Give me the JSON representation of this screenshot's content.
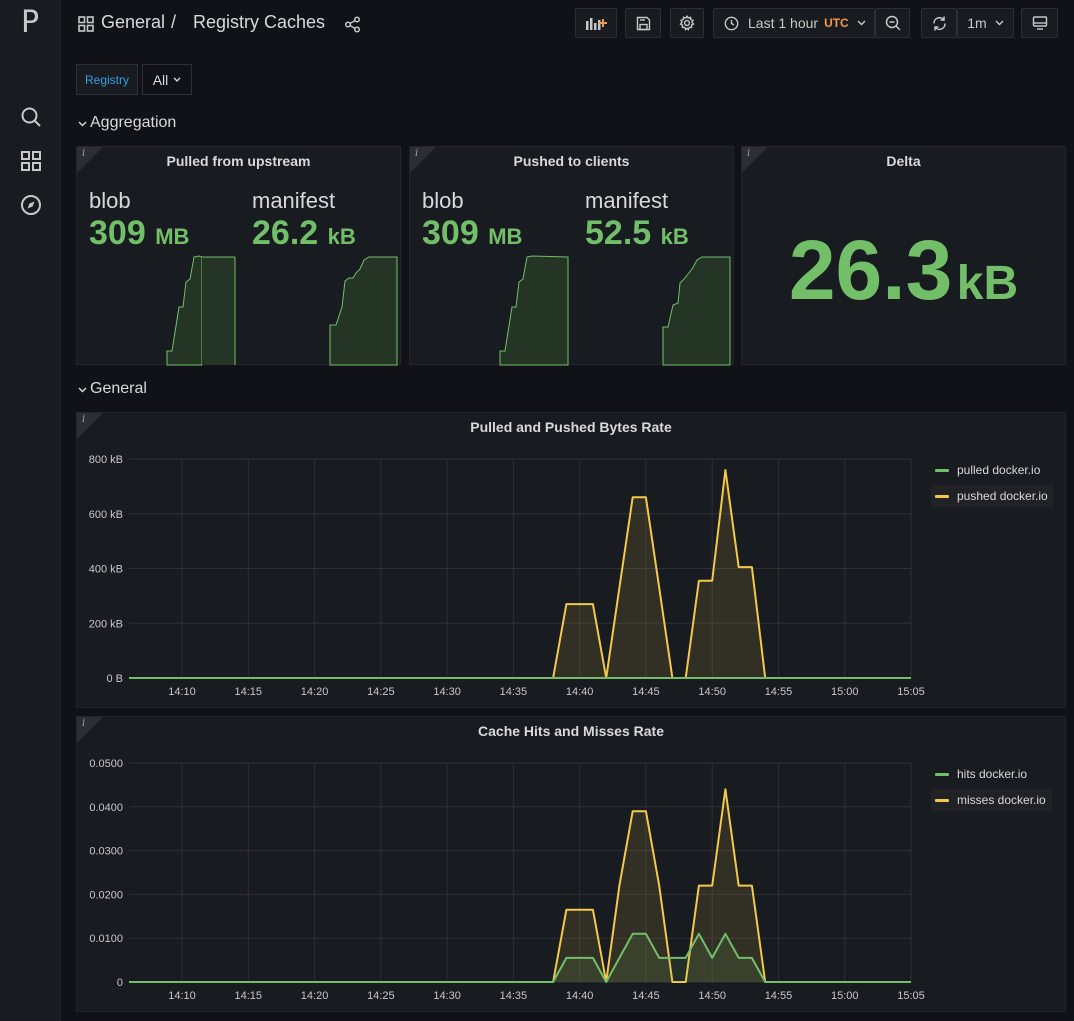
{
  "app": {
    "logo": "P"
  },
  "breadcrumb": {
    "folder": "General",
    "separator": "/",
    "dashboard": "Registry Caches"
  },
  "toolbar": {
    "time_range": "Last 1 hour",
    "timezone": "UTC",
    "refresh_interval": "1m"
  },
  "variables": {
    "label": "Registry",
    "value": "All"
  },
  "rows": {
    "aggregation": "Aggregation",
    "general": "General"
  },
  "panels": {
    "pulled_upstream": {
      "title": "Pulled from upstream",
      "stats": [
        {
          "name": "blob",
          "value": "309",
          "unit": "MB"
        },
        {
          "name": "manifest",
          "value": "26.2",
          "unit": "kB"
        }
      ]
    },
    "pushed_clients": {
      "title": "Pushed to clients",
      "stats": [
        {
          "name": "blob",
          "value": "309",
          "unit": "MB"
        },
        {
          "name": "manifest",
          "value": "52.5",
          "unit": "kB"
        }
      ]
    },
    "delta": {
      "title": "Delta",
      "value": "26.3",
      "unit": "kB"
    }
  },
  "colors": {
    "green": "#73bf69",
    "yellow": "#f2c94c",
    "background": "#111217",
    "panel": "#181b1f"
  },
  "icons": [
    "grid-icon",
    "share-icon",
    "add-panel-icon",
    "save-icon",
    "gear-icon",
    "clock-icon",
    "chevron-down-icon",
    "zoom-out-icon",
    "refresh-icon",
    "tv-icon",
    "search-icon",
    "dashboards-icon",
    "explore-icon"
  ],
  "chart_data": [
    {
      "type": "line",
      "title": "Pulled and Pushed Bytes Rate",
      "x_ticks": [
        "14:10",
        "14:15",
        "14:20",
        "14:25",
        "14:30",
        "14:35",
        "14:40",
        "14:45",
        "14:50",
        "14:55",
        "15:00",
        "15:05"
      ],
      "y_ticks": [
        "0 B",
        "200 kB",
        "400 kB",
        "600 kB",
        "800 kB"
      ],
      "ylim": [
        0,
        800
      ],
      "y_unit": "kB",
      "x": [
        "14:06",
        "14:38",
        "14:39",
        "14:41",
        "14:42",
        "14:43",
        "14:44",
        "14:45",
        "14:46",
        "14:47",
        "14:48",
        "14:49",
        "14:50",
        "14:51",
        "14:52",
        "14:53",
        "14:54",
        "14:55",
        "15:05"
      ],
      "series": [
        {
          "name": "pulled docker.io",
          "color": "#73bf69",
          "values": [
            0,
            0,
            0,
            0,
            0,
            0,
            0,
            0,
            0,
            0,
            0,
            0,
            0,
            0,
            0,
            0,
            0,
            0,
            0
          ]
        },
        {
          "name": "pushed docker.io",
          "color": "#f2c94c",
          "values": [
            0,
            0,
            270,
            270,
            0,
            330,
            660,
            660,
            330,
            0,
            0,
            355,
            355,
            760,
            405,
            405,
            0,
            0,
            0
          ]
        }
      ],
      "legend": "right"
    },
    {
      "type": "line",
      "title": "Cache Hits and Misses Rate",
      "x_ticks": [
        "14:10",
        "14:15",
        "14:20",
        "14:25",
        "14:30",
        "14:35",
        "14:40",
        "14:45",
        "14:50",
        "14:55",
        "15:00",
        "15:05"
      ],
      "y_ticks": [
        "0",
        "0.0100",
        "0.0200",
        "0.0300",
        "0.0400",
        "0.0500"
      ],
      "ylim": [
        0,
        0.05
      ],
      "x": [
        "14:06",
        "14:38",
        "14:39",
        "14:41",
        "14:42",
        "14:43",
        "14:44",
        "14:45",
        "14:46",
        "14:47",
        "14:48",
        "14:49",
        "14:50",
        "14:51",
        "14:52",
        "14:53",
        "14:54",
        "14:55",
        "15:05"
      ],
      "series": [
        {
          "name": "hits docker.io",
          "color": "#73bf69",
          "values": [
            0,
            0,
            0.0055,
            0.0055,
            0,
            0.0055,
            0.011,
            0.011,
            0.0055,
            0.0055,
            0.0055,
            0.011,
            0.0055,
            0.011,
            0.0055,
            0.0055,
            0,
            0,
            0
          ]
        },
        {
          "name": "misses docker.io",
          "color": "#f2c94c",
          "values": [
            0,
            0,
            0.0165,
            0.0165,
            0,
            0.022,
            0.039,
            0.039,
            0.022,
            0,
            0,
            0.022,
            0.022,
            0.044,
            0.022,
            0.022,
            0,
            0,
            0
          ]
        }
      ],
      "legend": "right"
    }
  ]
}
